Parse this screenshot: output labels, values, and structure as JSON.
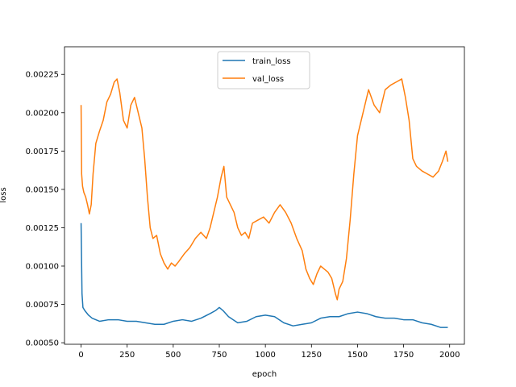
{
  "chart_data": {
    "type": "line",
    "xlabel": "epoch",
    "ylabel": "loss",
    "xlim": [
      -90,
      2080
    ],
    "ylim": [
      0.00049,
      0.00243
    ],
    "x_ticks": [
      0,
      250,
      500,
      750,
      1000,
      1250,
      1500,
      1750,
      2000
    ],
    "y_ticks": [
      0.0005,
      0.00075,
      0.001,
      0.00125,
      0.0015,
      0.00175,
      0.002,
      0.00225
    ],
    "y_tick_labels": [
      "0.00050",
      "0.00075",
      "0.00100",
      "0.00125",
      "0.00150",
      "0.00175",
      "0.00200",
      "0.00225"
    ],
    "grid": false,
    "legend_position": "top-center",
    "series": [
      {
        "name": "train_loss",
        "color": "#1f77b4",
        "x": [
          0,
          5,
          10,
          20,
          40,
          60,
          80,
          100,
          150,
          200,
          250,
          300,
          350,
          400,
          450,
          500,
          550,
          600,
          650,
          700,
          730,
          750,
          770,
          800,
          850,
          900,
          950,
          1000,
          1050,
          1100,
          1150,
          1200,
          1250,
          1300,
          1350,
          1400,
          1450,
          1500,
          1550,
          1600,
          1650,
          1700,
          1750,
          1800,
          1850,
          1900,
          1950,
          1990
        ],
        "y": [
          0.00128,
          0.00082,
          0.00073,
          0.00071,
          0.00068,
          0.00066,
          0.00065,
          0.00064,
          0.00065,
          0.00065,
          0.00064,
          0.00064,
          0.00063,
          0.00062,
          0.00062,
          0.00064,
          0.00065,
          0.00064,
          0.00066,
          0.00069,
          0.00071,
          0.00073,
          0.00071,
          0.00067,
          0.00063,
          0.00064,
          0.00067,
          0.00068,
          0.00067,
          0.00063,
          0.00061,
          0.00062,
          0.00063,
          0.00066,
          0.00067,
          0.00067,
          0.00069,
          0.0007,
          0.00069,
          0.00067,
          0.00066,
          0.00066,
          0.00065,
          0.00065,
          0.00063,
          0.00062,
          0.0006,
          0.0006
        ]
      },
      {
        "name": "val_loss",
        "color": "#ff7f0e",
        "x": [
          0,
          3,
          8,
          15,
          25,
          35,
          45,
          55,
          65,
          80,
          100,
          120,
          140,
          160,
          180,
          195,
          210,
          230,
          250,
          270,
          290,
          310,
          330,
          345,
          360,
          375,
          390,
          410,
          430,
          450,
          470,
          490,
          510,
          530,
          560,
          590,
          620,
          650,
          680,
          700,
          720,
          740,
          760,
          775,
          790,
          810,
          830,
          850,
          870,
          890,
          910,
          930,
          960,
          990,
          1020,
          1050,
          1080,
          1110,
          1140,
          1170,
          1200,
          1220,
          1240,
          1260,
          1280,
          1300,
          1320,
          1340,
          1360,
          1380,
          1390,
          1400,
          1420,
          1440,
          1460,
          1480,
          1500,
          1530,
          1560,
          1590,
          1620,
          1650,
          1680,
          1710,
          1740,
          1760,
          1780,
          1800,
          1820,
          1850,
          1880,
          1910,
          1940,
          1960,
          1980,
          1990
        ],
        "y": [
          0.00205,
          0.0016,
          0.00152,
          0.00148,
          0.00145,
          0.0014,
          0.00134,
          0.0014,
          0.0016,
          0.0018,
          0.00188,
          0.00195,
          0.00207,
          0.00212,
          0.0022,
          0.00222,
          0.00213,
          0.00195,
          0.0019,
          0.00205,
          0.0021,
          0.002,
          0.0019,
          0.0017,
          0.00145,
          0.00125,
          0.00118,
          0.0012,
          0.00108,
          0.00102,
          0.00098,
          0.00102,
          0.001,
          0.00103,
          0.00108,
          0.00112,
          0.00118,
          0.00122,
          0.00118,
          0.00125,
          0.00135,
          0.00145,
          0.00158,
          0.00165,
          0.00145,
          0.0014,
          0.00135,
          0.00125,
          0.0012,
          0.00122,
          0.00118,
          0.00128,
          0.0013,
          0.00132,
          0.00128,
          0.00135,
          0.0014,
          0.00135,
          0.00128,
          0.00118,
          0.0011,
          0.00098,
          0.00092,
          0.00088,
          0.00095,
          0.001,
          0.00098,
          0.00096,
          0.00092,
          0.00082,
          0.00078,
          0.00085,
          0.0009,
          0.00105,
          0.0013,
          0.0016,
          0.00185,
          0.002,
          0.00215,
          0.00205,
          0.002,
          0.00215,
          0.00218,
          0.0022,
          0.00222,
          0.0021,
          0.00195,
          0.0017,
          0.00165,
          0.00162,
          0.0016,
          0.00158,
          0.00162,
          0.00168,
          0.00175,
          0.00168
        ]
      }
    ]
  }
}
